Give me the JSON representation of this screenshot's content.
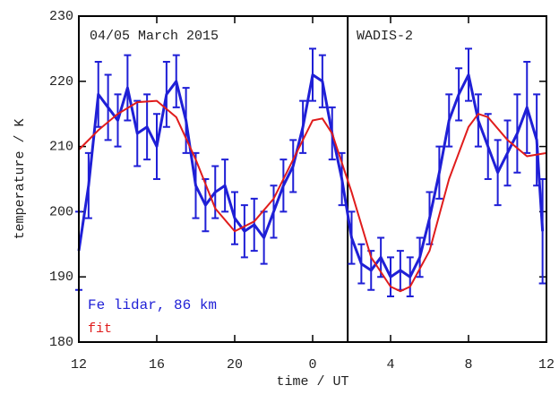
{
  "chart_data": {
    "type": "line",
    "xlabel": "time / UT",
    "ylabel": "temperature / K",
    "annotations": [
      "04/05 March 2015",
      "WADIS-2"
    ],
    "event_x": 25.8,
    "xlim": [
      12,
      36
    ],
    "xticks": [
      {
        "value": 12,
        "label": "12"
      },
      {
        "value": 16,
        "label": "16"
      },
      {
        "value": 20,
        "label": "20"
      },
      {
        "value": 24,
        "label": "0"
      },
      {
        "value": 28,
        "label": "4"
      },
      {
        "value": 32,
        "label": "8"
      },
      {
        "value": 36,
        "label": "12"
      }
    ],
    "ylim": [
      180,
      230
    ],
    "yticks": [
      180,
      190,
      200,
      210,
      220,
      230
    ],
    "series": [
      {
        "name": "Fe lidar, 86 km",
        "color": "#1f1fd6",
        "x": [
          12,
          12.5,
          13,
          13.5,
          14,
          14.5,
          15,
          15.5,
          16,
          16.5,
          17,
          17.5,
          18,
          18.5,
          19,
          19.5,
          20,
          20.5,
          21,
          21.5,
          22,
          22.5,
          23,
          23.5,
          24,
          24.5,
          25,
          25.5,
          26,
          26.5,
          27,
          27.5,
          28,
          28.5,
          29,
          29.5,
          30,
          30.5,
          31,
          31.5,
          32,
          32.5,
          33,
          33.5,
          34,
          34.5,
          35,
          35.5,
          35.8
        ],
        "values": [
          194,
          204,
          218,
          216,
          214,
          219,
          212,
          213,
          210,
          218,
          220,
          214,
          204,
          201,
          203,
          204,
          199,
          197,
          198,
          196,
          200,
          204,
          207,
          213,
          221,
          220,
          212,
          205,
          196,
          192,
          191,
          193,
          190,
          191,
          190,
          193,
          199,
          206,
          214,
          218,
          221,
          214,
          210,
          206,
          209,
          212,
          216,
          211,
          197
        ],
        "errors": [
          6,
          5,
          5,
          5,
          4,
          5,
          5,
          5,
          5,
          5,
          4,
          5,
          5,
          4,
          4,
          4,
          4,
          4,
          4,
          4,
          4,
          4,
          4,
          4,
          4,
          4,
          4,
          4,
          4,
          3,
          3,
          3,
          3,
          3,
          3,
          3,
          4,
          4,
          4,
          4,
          4,
          4,
          5,
          5,
          5,
          6,
          7,
          7,
          8
        ]
      },
      {
        "name": "fit",
        "color": "#e01c1c",
        "x": [
          12,
          13,
          14,
          15,
          16,
          17,
          18,
          19,
          20,
          21,
          22,
          23,
          24,
          24.5,
          25,
          26,
          27,
          28,
          28.5,
          29,
          30,
          31,
          32,
          32.5,
          33,
          34,
          35,
          36
        ],
        "values": [
          209.5,
          212.5,
          215,
          216.8,
          217,
          214.5,
          208,
          200.5,
          197,
          198.5,
          202,
          208,
          214,
          214.3,
          212,
          203,
          193,
          188.5,
          187.8,
          188.5,
          194,
          205,
          213,
          215,
          214.5,
          211,
          208.5,
          209
        ]
      }
    ]
  }
}
